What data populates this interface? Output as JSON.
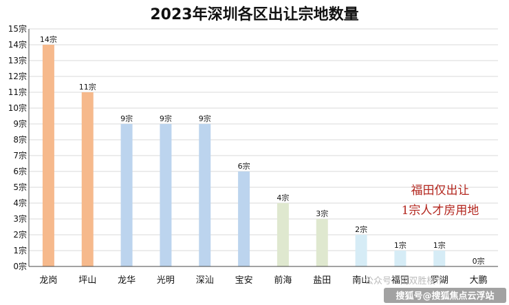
{
  "chart_data": {
    "type": "bar",
    "title": "2023年深圳各区出让宗地数量",
    "categories": [
      "龙岗",
      "坪山",
      "龙华",
      "光明",
      "深汕",
      "宝安",
      "前海",
      "盐田",
      "南山",
      "福田",
      "罗湖",
      "大鹏"
    ],
    "values": [
      14,
      11,
      9,
      9,
      9,
      6,
      4,
      3,
      2,
      1,
      1,
      0
    ],
    "data_labels": [
      "14宗",
      "11宗",
      "9宗",
      "9宗",
      "9宗",
      "6宗",
      "4宗",
      "3宗",
      "2宗",
      "1宗",
      "1宗",
      "0宗"
    ],
    "bar_colors": [
      "#f6b98c",
      "#f6b98c",
      "#bcd4ee",
      "#bcd4ee",
      "#bcd4ee",
      "#bcd4ee",
      "#dfe8cf",
      "#dfe8cf",
      "#d6ecf6",
      "#d6ecf6",
      "#d6ecf6",
      "#d6ecf6"
    ],
    "y_tick_labels": [
      "0宗",
      "1宗",
      "2宗",
      "3宗",
      "4宗",
      "5宗",
      "6宗",
      "7宗",
      "8宗",
      "9宗",
      "10宗",
      "11宗",
      "12宗",
      "13宗",
      "14宗",
      "15宗"
    ],
    "ylim": [
      0,
      15
    ],
    "grid": true,
    "annotation": [
      "福田仅出让",
      "1宗人才房用地"
    ],
    "annotation_color": "#b3261e"
  },
  "watermark": {
    "line1": "公众号 · 南双胜楼市",
    "line2": "搜狐号@搜狐焦点云浮站"
  }
}
